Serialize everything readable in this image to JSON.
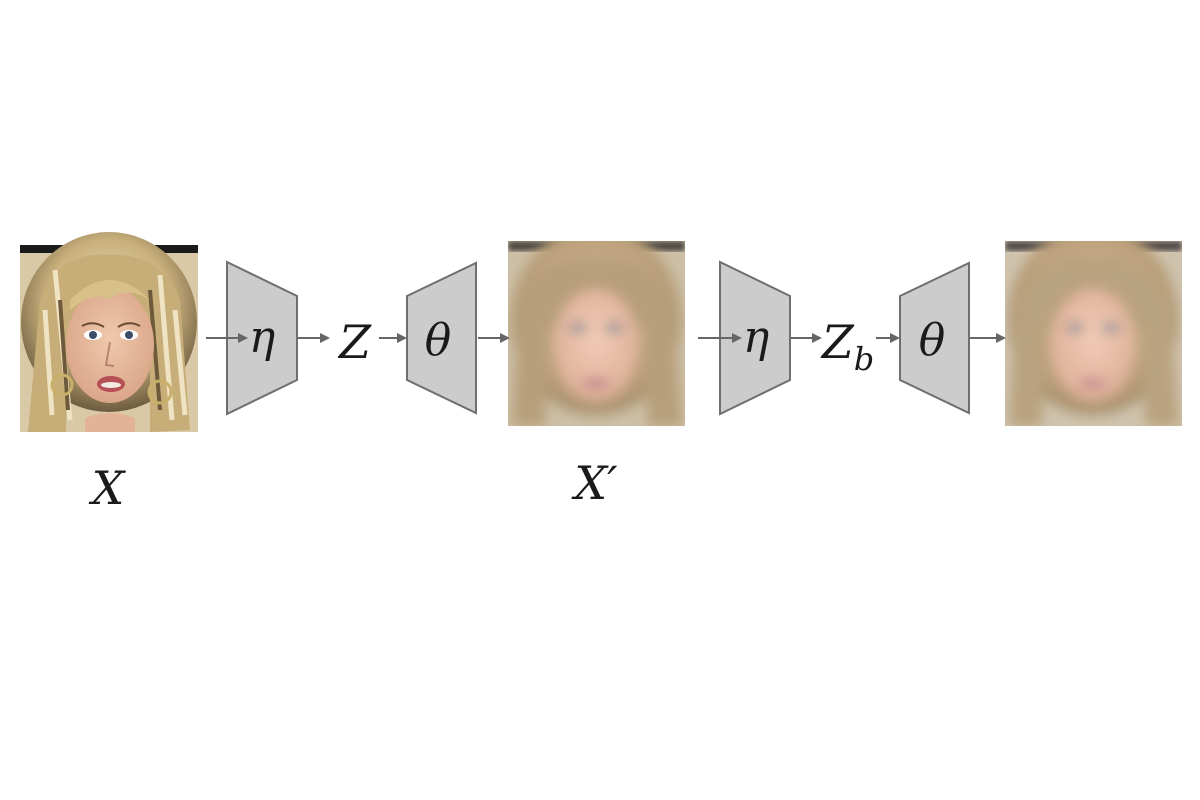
{
  "images": [
    {
      "name": "input-face-image",
      "description": "sharp face photo, woman with blonde highlighted hair and hoop earrings"
    },
    {
      "name": "reconstructed-face-image",
      "description": "blurred reconstruction of the face"
    },
    {
      "name": "re-reconstructed-face-image",
      "description": "blurred re-reconstruction of the face"
    }
  ],
  "labels": {
    "input": "X",
    "reconstruction": "X′",
    "latent": "Z",
    "latent_b_base": "Z",
    "latent_b_sub": "b"
  },
  "encoders": [
    {
      "name": "encoder-1",
      "symbol": "η"
    },
    {
      "name": "encoder-2",
      "symbol": "η"
    }
  ],
  "decoders": [
    {
      "name": "decoder-1",
      "symbol": "θ"
    },
    {
      "name": "decoder-2",
      "symbol": "θ"
    }
  ],
  "colors": {
    "block_fill": "#cccccc",
    "block_stroke": "#6f6f6f",
    "arrow": "#666666",
    "text": "#1a1a1a"
  }
}
